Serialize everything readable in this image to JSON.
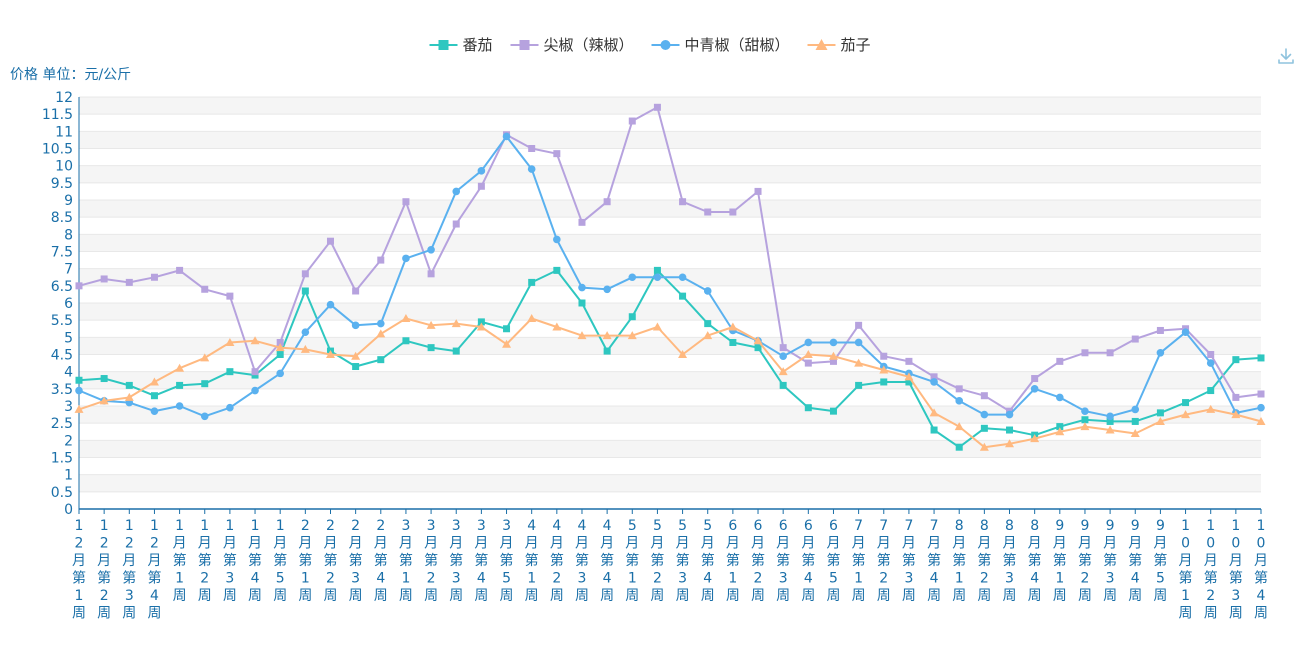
{
  "chart_data": {
    "type": "line",
    "ylabel": "价格 单位：元/公斤",
    "ylim": [
      0,
      12
    ],
    "ytick_step": 0.5,
    "legend_position": "top-center",
    "categories": [
      "12月第1周",
      "12月第2周",
      "12月第3周",
      "12月第4周",
      "1月第1周",
      "1月第2周",
      "1月第3周",
      "1月第4周",
      "1月第5周",
      "2月第1周",
      "2月第2周",
      "2月第3周",
      "2月第4周",
      "3月第1周",
      "3月第2周",
      "3月第3周",
      "3月第4周",
      "3月第5周",
      "4月第1周",
      "4月第2周",
      "4月第3周",
      "4月第4周",
      "5月第1周",
      "5月第2周",
      "5月第3周",
      "5月第4周",
      "6月第1周",
      "6月第2周",
      "6月第3周",
      "6月第4周",
      "6月第5周",
      "7月第1周",
      "7月第2周",
      "7月第3周",
      "7月第4周",
      "8月第1周",
      "8月第2周",
      "8月第3周",
      "8月第4周",
      "9月第1周",
      "9月第2周",
      "9月第3周",
      "9月第4周",
      "9月第5周",
      "10月第1周",
      "10月第2周",
      "10月第3周",
      "10月第4周"
    ],
    "series": [
      {
        "name": "番茄",
        "color": "#2ec7c0",
        "marker": "square",
        "values": [
          3.75,
          3.8,
          3.6,
          3.3,
          3.6,
          3.65,
          4.0,
          3.9,
          4.5,
          6.35,
          4.6,
          4.15,
          4.35,
          4.9,
          4.7,
          4.6,
          5.45,
          5.25,
          6.6,
          6.95,
          6.0,
          4.6,
          5.6,
          6.95,
          6.2,
          5.4,
          4.85,
          4.7,
          3.6,
          2.95,
          2.85,
          3.6,
          3.7,
          3.7,
          2.3,
          1.8,
          2.35,
          2.3,
          2.15,
          2.4,
          2.6,
          2.55,
          2.55,
          2.8,
          3.1,
          3.45,
          4.35,
          4.4
        ]
      },
      {
        "name": "尖椒（辣椒）",
        "color": "#b6a2de",
        "marker": "square",
        "values": [
          6.5,
          6.7,
          6.6,
          6.75,
          6.95,
          6.4,
          6.2,
          4.0,
          4.85,
          6.85,
          7.8,
          6.35,
          7.25,
          8.95,
          6.85,
          8.3,
          9.4,
          10.9,
          10.5,
          10.35,
          8.35,
          8.95,
          11.3,
          11.7,
          8.95,
          8.65,
          8.65,
          9.25,
          4.7,
          4.25,
          4.3,
          5.35,
          4.45,
          4.3,
          3.85,
          3.5,
          3.3,
          2.85,
          3.8,
          4.3,
          4.55,
          4.55,
          4.95,
          5.2,
          5.25,
          4.5,
          3.25,
          3.35
        ]
      },
      {
        "name": "中青椒（甜椒）",
        "color": "#5ab1ef",
        "marker": "circle",
        "values": [
          3.45,
          3.15,
          3.1,
          2.85,
          3.0,
          2.7,
          2.95,
          3.45,
          3.95,
          5.15,
          5.95,
          5.35,
          5.4,
          7.3,
          7.55,
          9.25,
          9.85,
          10.85,
          9.9,
          7.85,
          6.45,
          6.4,
          6.75,
          6.75,
          6.75,
          6.35,
          5.2,
          4.9,
          4.45,
          4.85,
          4.85,
          4.85,
          4.15,
          3.95,
          3.7,
          3.15,
          2.75,
          2.75,
          3.5,
          3.25,
          2.85,
          2.7,
          2.9,
          4.55,
          5.15,
          4.25,
          2.8,
          2.95
        ]
      },
      {
        "name": "茄子",
        "color": "#ffb980",
        "marker": "triangle",
        "values": [
          2.9,
          3.15,
          3.25,
          3.7,
          4.1,
          4.4,
          4.85,
          4.9,
          4.7,
          4.65,
          4.5,
          4.45,
          5.1,
          5.55,
          5.35,
          5.4,
          5.3,
          4.8,
          5.55,
          5.3,
          5.05,
          5.05,
          5.05,
          5.3,
          4.5,
          5.05,
          5.3,
          4.9,
          4.0,
          4.5,
          4.45,
          4.25,
          4.05,
          3.85,
          2.8,
          2.4,
          1.8,
          1.9,
          2.05,
          2.25,
          2.4,
          2.3,
          2.2,
          2.55,
          2.75,
          2.9,
          2.75,
          2.55
        ]
      }
    ]
  }
}
